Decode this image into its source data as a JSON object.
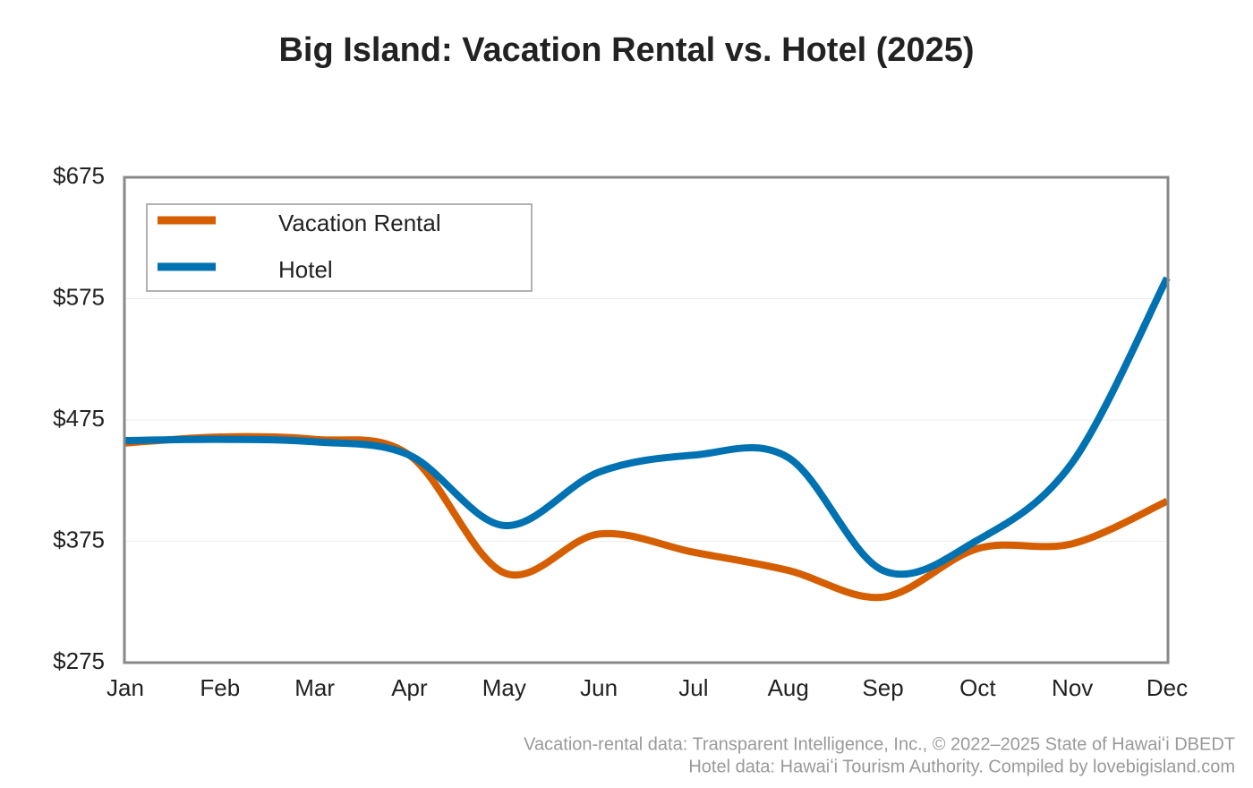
{
  "chart_data": {
    "type": "line",
    "title": "Big Island: Vacation Rental vs. Hotel (2025)",
    "categories": [
      "Jan",
      "Feb",
      "Mar",
      "Apr",
      "May",
      "Jun",
      "Jul",
      "Aug",
      "Sep",
      "Oct",
      "Nov",
      "Dec"
    ],
    "series": [
      {
        "name": "Vacation Rental",
        "color": "#d55e00",
        "values": [
          456,
          461,
          459,
          446,
          349,
          381,
          366,
          351,
          329,
          369,
          373,
          408
        ]
      },
      {
        "name": "Hotel",
        "color": "#0072b2",
        "values": [
          458,
          459,
          457,
          446,
          388,
          432,
          446,
          444,
          351,
          376,
          440,
          592
        ]
      }
    ],
    "ylim": [
      275,
      675
    ],
    "yticks": [
      {
        "value": 275,
        "label": "$275"
      },
      {
        "value": 375,
        "label": "$375"
      },
      {
        "value": 475,
        "label": "$475"
      },
      {
        "value": 575,
        "label": "$575"
      },
      {
        "value": 675,
        "label": "$675"
      }
    ],
    "grid": true,
    "legend": "upper-left",
    "notes": [
      "Vacation-rental data: Transparent Intelligence, Inc., © 2022–2025 State of Hawaiʻi DBEDT",
      "Hotel data: Hawaiʻi Tourism Authority. Compiled by lovebigisland.com"
    ]
  }
}
